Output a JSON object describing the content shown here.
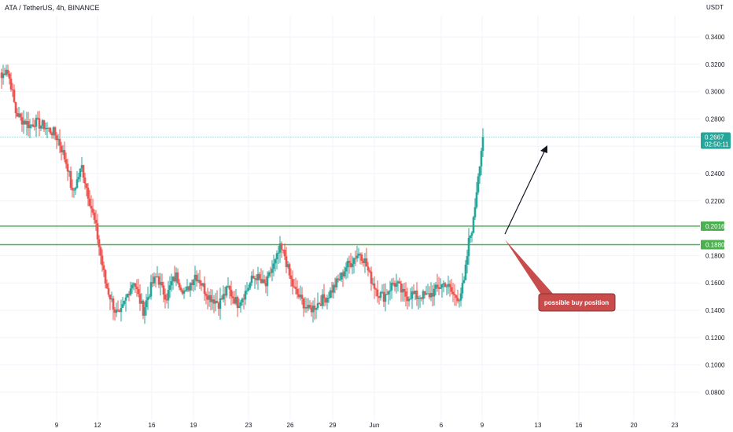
{
  "header": {
    "title": "ATA / TetherUS, 4h, BINANCE",
    "unit": "USDT"
  },
  "annotation": {
    "text": "possible buy position"
  },
  "colors": {
    "up": "#26a69a",
    "down": "#ef5350",
    "level": "#4caf50",
    "grid": "#f0f3fa",
    "price_line": "#b2dfdb",
    "callout": "#c94c4c"
  },
  "chart_data": {
    "type": "candlestick",
    "title": "ATA / TetherUS, 4h, BINANCE",
    "ylabel": "USDT",
    "ylim": [
      0.06,
      0.36
    ],
    "y_ticks": [
      "0.3400",
      "0.3200",
      "0.3000",
      "0.2800",
      "0.2600",
      "0.2400",
      "0.2200",
      "0.2000",
      "0.1800",
      "0.1600",
      "0.1400",
      "0.1200",
      "0.1000",
      "0.0800"
    ],
    "x_ticks": [
      "9",
      "12",
      "16",
      "19",
      "23",
      "26",
      "29",
      "Jun",
      "6",
      "9",
      "13",
      "16",
      "20",
      "23"
    ],
    "last_price": {
      "value": "0.2667",
      "countdown": "02:50:11"
    },
    "levels": [
      {
        "value": "0.2016"
      },
      {
        "value": "0.1880"
      }
    ],
    "close_path": [
      0.31,
      0.318,
      0.305,
      0.285,
      0.28,
      0.278,
      0.275,
      0.278,
      0.276,
      0.275,
      0.272,
      0.27,
      0.265,
      0.255,
      0.245,
      0.225,
      0.235,
      0.245,
      0.23,
      0.215,
      0.2,
      0.18,
      0.16,
      0.15,
      0.14,
      0.135,
      0.145,
      0.155,
      0.162,
      0.15,
      0.14,
      0.15,
      0.16,
      0.165,
      0.155,
      0.15,
      0.16,
      0.165,
      0.158,
      0.152,
      0.16,
      0.166,
      0.162,
      0.155,
      0.15,
      0.148,
      0.145,
      0.15,
      0.156,
      0.15,
      0.145,
      0.15,
      0.155,
      0.162,
      0.165,
      0.16,
      0.158,
      0.168,
      0.175,
      0.185,
      0.18,
      0.165,
      0.155,
      0.15,
      0.145,
      0.14,
      0.142,
      0.145,
      0.148,
      0.15,
      0.155,
      0.16,
      0.165,
      0.172,
      0.175,
      0.18,
      0.182,
      0.176,
      0.165,
      0.158,
      0.152,
      0.15,
      0.155,
      0.16,
      0.158,
      0.152,
      0.15,
      0.152,
      0.15,
      0.151,
      0.15,
      0.152,
      0.155,
      0.158,
      0.16,
      0.155,
      0.15,
      0.15,
      0.16,
      0.19,
      0.205,
      0.24,
      0.2667
    ]
  }
}
